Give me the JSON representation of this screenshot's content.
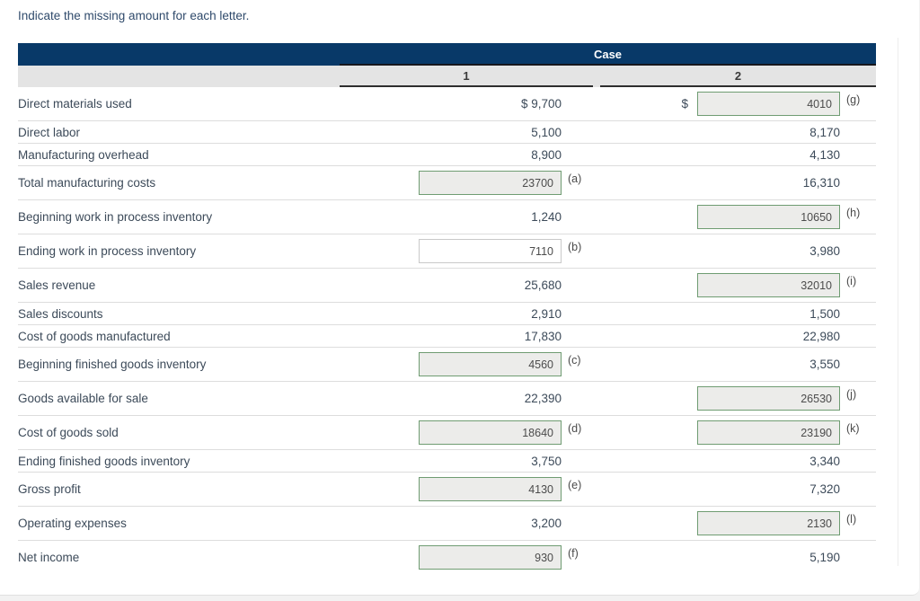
{
  "page": {
    "title": "Indicate the missing amount for each letter."
  },
  "colors": {
    "header_navy": "#083968",
    "subheader_gray": "#e4e4e4",
    "input_border_green": "#6f9c72",
    "input_fill_gray": "#ececea",
    "text_dark": "#3c4a59"
  },
  "table": {
    "case_header": "Case",
    "columns": [
      "1",
      "2"
    ],
    "rows": [
      {
        "label": "Direct materials used",
        "tall": true,
        "c1": {
          "type": "text",
          "value": "$ 9,700"
        },
        "c2": {
          "type": "input",
          "value": "4010",
          "letter": "(g)",
          "prefix": "$"
        }
      },
      {
        "label": "Direct labor",
        "c1": {
          "type": "text",
          "value": "5,100"
        },
        "c2": {
          "type": "text",
          "value": "8,170"
        }
      },
      {
        "label": "Manufacturing overhead",
        "c1": {
          "type": "text",
          "value": "8,900"
        },
        "c2": {
          "type": "text",
          "value": "4,130"
        }
      },
      {
        "label": "Total manufacturing costs",
        "tall": true,
        "c1": {
          "type": "input",
          "value": "23700",
          "letter": "(a)"
        },
        "c2": {
          "type": "text",
          "value": "16,310"
        }
      },
      {
        "label": "Beginning work in process inventory",
        "tall": true,
        "c1": {
          "type": "text",
          "value": "1,240"
        },
        "c2": {
          "type": "input",
          "value": "10650",
          "letter": "(h)"
        }
      },
      {
        "label": "Ending work in process inventory",
        "tall": true,
        "c1": {
          "type": "input",
          "value": "7110",
          "letter": "(b)",
          "variant": "white"
        },
        "c2": {
          "type": "text",
          "value": "3,980"
        }
      },
      {
        "label": "Sales revenue",
        "tall": true,
        "c1": {
          "type": "text",
          "value": "25,680"
        },
        "c2": {
          "type": "input",
          "value": "32010",
          "letter": "(i)"
        }
      },
      {
        "label": "Sales discounts",
        "c1": {
          "type": "text",
          "value": "2,910"
        },
        "c2": {
          "type": "text",
          "value": "1,500"
        }
      },
      {
        "label": "Cost of goods manufactured",
        "c1": {
          "type": "text",
          "value": "17,830"
        },
        "c2": {
          "type": "text",
          "value": "22,980"
        }
      },
      {
        "label": "Beginning finished goods inventory",
        "tall": true,
        "c1": {
          "type": "input",
          "value": "4560",
          "letter": "(c)"
        },
        "c2": {
          "type": "text",
          "value": "3,550"
        }
      },
      {
        "label": "Goods available for sale",
        "tall": true,
        "c1": {
          "type": "text",
          "value": "22,390"
        },
        "c2": {
          "type": "input",
          "value": "26530",
          "letter": "(j)"
        }
      },
      {
        "label": "Cost of goods sold",
        "tall": true,
        "c1": {
          "type": "input",
          "value": "18640",
          "letter": "(d)"
        },
        "c2": {
          "type": "input",
          "value": "23190",
          "letter": "(k)"
        }
      },
      {
        "label": "Ending finished goods inventory",
        "c1": {
          "type": "text",
          "value": "3,750"
        },
        "c2": {
          "type": "text",
          "value": "3,340"
        }
      },
      {
        "label": "Gross profit",
        "tall": true,
        "c1": {
          "type": "input",
          "value": "4130",
          "letter": "(e)"
        },
        "c2": {
          "type": "text",
          "value": "7,320"
        }
      },
      {
        "label": "Operating expenses",
        "tall": true,
        "c1": {
          "type": "text",
          "value": "3,200"
        },
        "c2": {
          "type": "input",
          "value": "2130",
          "letter": "(l)"
        }
      },
      {
        "label": "Net income",
        "tall": true,
        "c1": {
          "type": "input",
          "value": "930",
          "letter": "(f)"
        },
        "c2": {
          "type": "text",
          "value": "5,190"
        }
      }
    ]
  }
}
